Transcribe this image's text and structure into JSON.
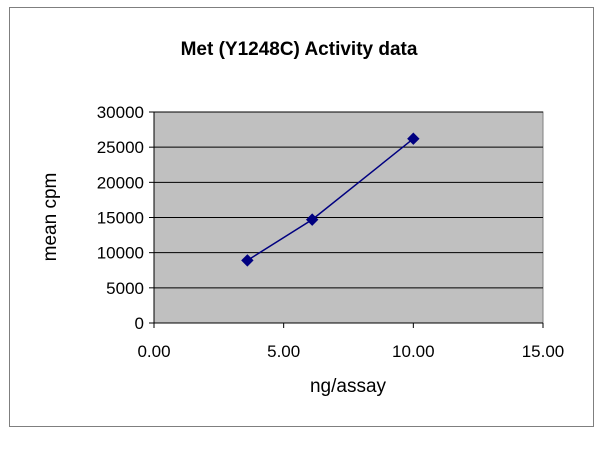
{
  "chart_data": {
    "type": "scatter",
    "title": "Met (Y1248C) Activity data",
    "xlabel": "ng/assay",
    "ylabel": "mean cpm",
    "xlim": [
      0,
      15
    ],
    "ylim": [
      0,
      30000
    ],
    "x_ticks": [
      "0.00",
      "5.00",
      "10.00",
      "15.00"
    ],
    "y_ticks": [
      "0",
      "5000",
      "10000",
      "15000",
      "20000",
      "25000",
      "30000"
    ],
    "grid": "horizontal",
    "legend": "none",
    "series": [
      {
        "x": [
          3.6,
          6.1,
          10.0
        ],
        "y": [
          8900,
          14700,
          26200
        ],
        "marker": "diamond",
        "line": "smooth"
      }
    ],
    "colors": {
      "plot_background": "#c0c0c0",
      "series": "#000080",
      "gridline": "#000000"
    }
  }
}
